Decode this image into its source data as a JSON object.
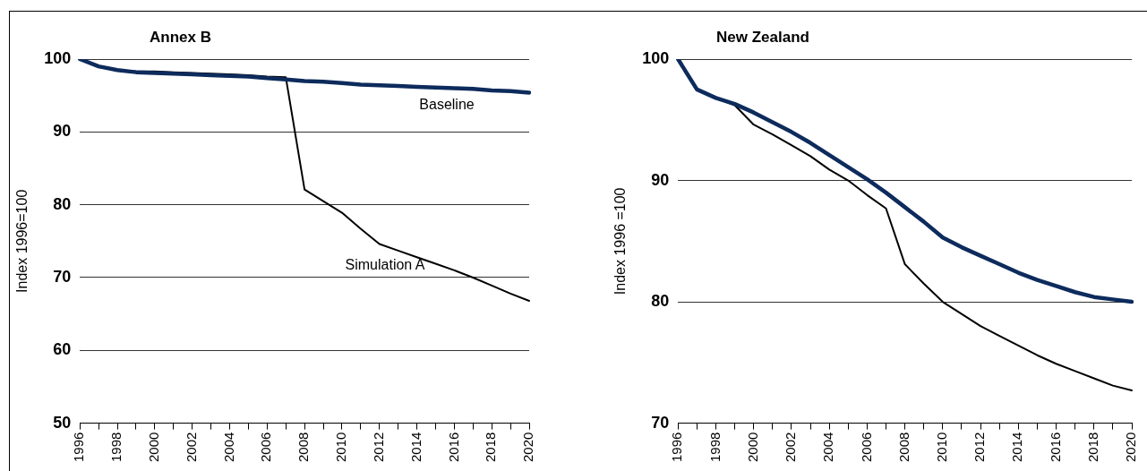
{
  "chart_data": [
    {
      "type": "line",
      "title": "Annex B",
      "ylabel": "Index 1996=100",
      "categories": [
        "1996",
        null,
        "1998",
        null,
        "2000",
        null,
        "2002",
        null,
        "2004",
        null,
        "2006",
        null,
        "2008",
        null,
        "2010",
        null,
        "2012",
        null,
        "2014",
        null,
        "2016",
        null,
        "2018",
        null,
        "2020"
      ],
      "series": [
        {
          "name": "Baseline",
          "color": "#0d2b5c",
          "values": [
            100,
            99.0,
            98.5,
            98.2,
            98.1,
            98.0,
            97.9,
            97.8,
            97.7,
            97.6,
            97.4,
            97.2,
            97.0,
            96.9,
            96.7,
            96.5,
            96.4,
            96.3,
            96.2,
            96.1,
            96.0,
            95.9,
            95.7,
            95.6,
            95.4
          ]
        },
        {
          "name": "Simulation A",
          "color": "#000000",
          "values": [
            100,
            98.9,
            98.5,
            98.3,
            98.3,
            98.2,
            98.1,
            98.0,
            97.9,
            97.8,
            97.6,
            97.5,
            82.1,
            80.5,
            78.9,
            76.7,
            74.6,
            73.7,
            72.8,
            71.9,
            71.0,
            70.0,
            68.9,
            67.8,
            66.8
          ]
        }
      ],
      "ylim": [
        50,
        100
      ],
      "yticks": [
        50,
        60,
        70,
        80,
        90,
        100
      ],
      "grid": "y",
      "legend": false,
      "marker": "none",
      "line_style": "solid"
    },
    {
      "type": "line",
      "title": "New Zealand",
      "ylabel": "Index 1996 =100",
      "categories": [
        "1996",
        null,
        "1998",
        null,
        "2000",
        null,
        "2002",
        null,
        "2004",
        null,
        "2006",
        null,
        "2008",
        null,
        "2010",
        null,
        "2012",
        null,
        "2014",
        null,
        "2016",
        null,
        "2018",
        null,
        "2020"
      ],
      "series": [
        {
          "color": "#0d2b5c",
          "values": [
            100,
            97.5,
            96.8,
            96.3,
            95.6,
            94.8,
            94.0,
            93.1,
            92.1,
            91.1,
            90.1,
            89.0,
            87.8,
            86.6,
            85.3,
            84.5,
            83.8,
            83.1,
            82.4,
            81.8,
            81.3,
            80.8,
            80.4,
            80.2,
            80.0
          ]
        },
        {
          "color": "#000000",
          "values": [
            100,
            97.5,
            96.8,
            96.2,
            94.6,
            93.8,
            92.9,
            92.0,
            90.9,
            90.0,
            88.8,
            87.7,
            83.1,
            81.5,
            80.0,
            79.0,
            78.0,
            77.2,
            76.4,
            75.6,
            74.9,
            74.3,
            73.7,
            73.1,
            72.7
          ]
        }
      ],
      "ylim": [
        70,
        100
      ],
      "yticks": [
        70,
        80,
        90,
        100
      ],
      "grid": "y",
      "legend": false,
      "marker": "none",
      "line_style": "solid"
    }
  ]
}
